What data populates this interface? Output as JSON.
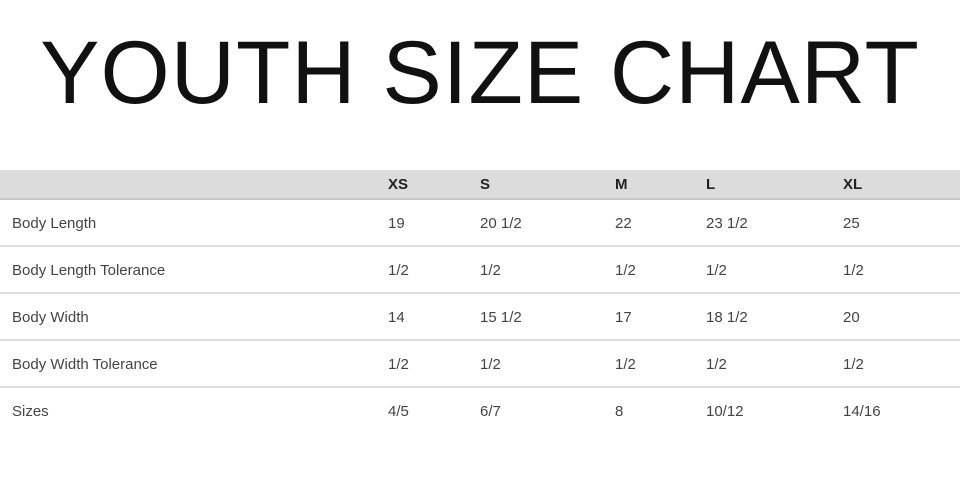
{
  "title": "YOUTH SIZE CHART",
  "table": {
    "headers": [
      "",
      "XS",
      "S",
      "M",
      "L",
      "XL"
    ],
    "rows": [
      [
        "Body Length",
        "19",
        "20 1/2",
        "22",
        "23 1/2",
        "25"
      ],
      [
        "Body Length Tolerance",
        "1/2",
        "1/2",
        "1/2",
        "1/2",
        "1/2"
      ],
      [
        "Body Width",
        "14",
        "15 1/2",
        "17",
        "18 1/2",
        "20"
      ],
      [
        "Body Width Tolerance",
        "1/2",
        "1/2",
        "1/2",
        "1/2",
        "1/2"
      ],
      [
        "Sizes",
        "4/5",
        "6/7",
        "8",
        "10/12",
        "14/16"
      ]
    ]
  },
  "colors": {
    "header_bg": "#dcdcdc",
    "text": "#444444"
  }
}
